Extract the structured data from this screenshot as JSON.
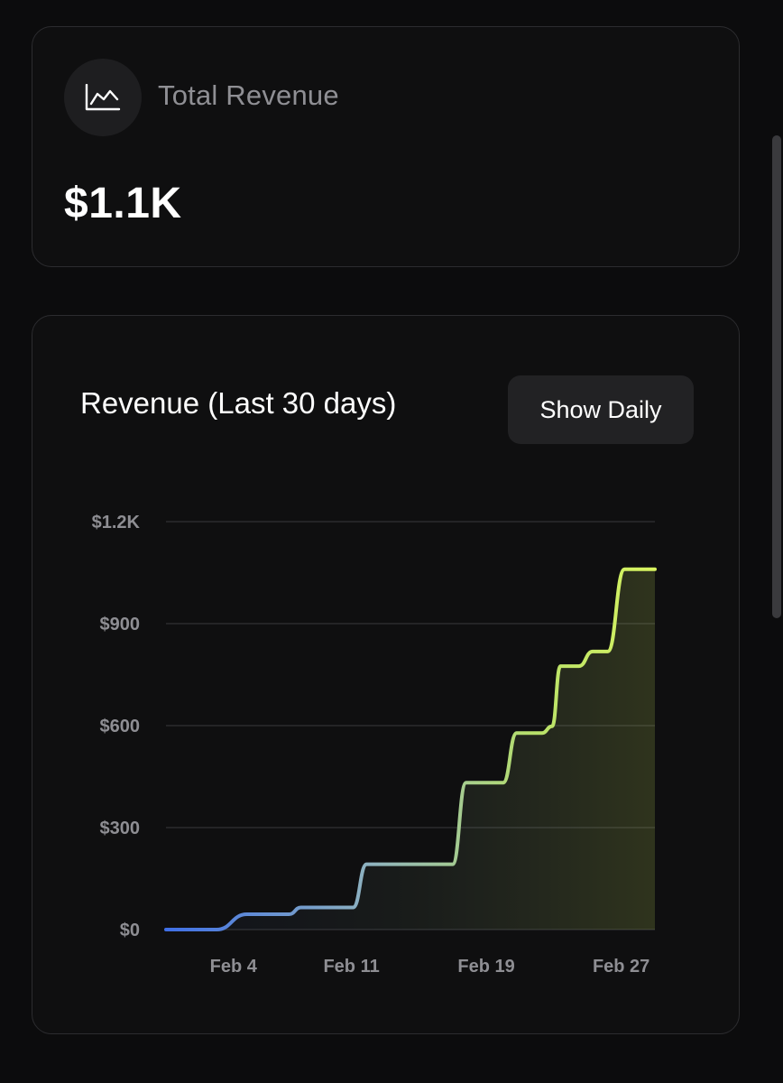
{
  "revenue_card": {
    "icon": "chart-line-icon",
    "label": "Total Revenue",
    "value": "$1.1K"
  },
  "chart_card": {
    "title": "Revenue (Last 30 days)",
    "toggle_label": "Show Daily"
  },
  "colors": {
    "background": "#0c0c0d",
    "card": "#0f0f10",
    "line_start": "#3f6fe6",
    "line_mid": "#8fb3bf",
    "line_end": "#d9f560",
    "muted_text": "#8e8e93"
  },
  "chart_data": {
    "type": "area",
    "title": "Revenue (Last 30 days)",
    "xlabel": "",
    "ylabel": "",
    "cumulative": true,
    "ylim": [
      0,
      1200
    ],
    "yticks": [
      0,
      300,
      600,
      900,
      1200
    ],
    "ytick_labels": [
      "$0",
      "$300",
      "$600",
      "$900",
      "$1.2K"
    ],
    "xlim": [
      0,
      29
    ],
    "xticks": [
      {
        "day": 4,
        "label": "Feb 4"
      },
      {
        "day": 11,
        "label": "Feb 11"
      },
      {
        "day": 19,
        "label": "Feb 19"
      },
      {
        "day": 27,
        "label": "Feb 27"
      }
    ],
    "grid": true,
    "series": [
      {
        "name": "Revenue",
        "points": [
          [
            0,
            0
          ],
          [
            3,
            0
          ],
          [
            4.8,
            45
          ],
          [
            7.3,
            45
          ],
          [
            8,
            65
          ],
          [
            11.1,
            65
          ],
          [
            11.9,
            192
          ],
          [
            17,
            192
          ],
          [
            17.8,
            432
          ],
          [
            20,
            432
          ],
          [
            20.8,
            578
          ],
          [
            22.3,
            578
          ],
          [
            22.9,
            598
          ],
          [
            23.4,
            775
          ],
          [
            24.5,
            775
          ],
          [
            25.3,
            818
          ],
          [
            26.2,
            818
          ],
          [
            27.2,
            1060
          ],
          [
            29,
            1060
          ]
        ]
      }
    ]
  }
}
